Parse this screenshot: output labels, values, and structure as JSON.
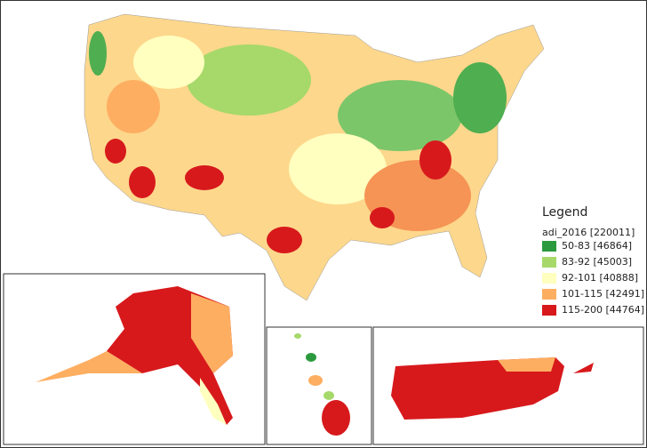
{
  "legend": {
    "title": "Legend",
    "layer": "adi_2016 [220011]",
    "items": [
      {
        "label": "50-83 [46864]",
        "color": "#2b9a3e"
      },
      {
        "label": "83-92 [45003]",
        "color": "#a6d96a"
      },
      {
        "label": "92-101 [40888]",
        "color": "#ffffbf"
      },
      {
        "label": "101-115 [42491]",
        "color": "#fdae61"
      },
      {
        "label": "115-200 [44764]",
        "color": "#d7191c"
      }
    ]
  }
}
